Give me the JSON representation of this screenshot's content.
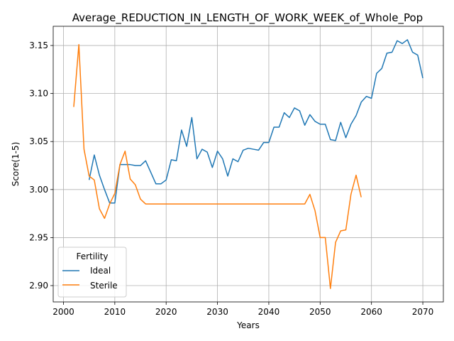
{
  "chart_data": {
    "type": "line",
    "title": "Average_REDUCTION_IN_LENGTH_OF_WORK_WEEK_of_Whole_Pop",
    "xlabel": "Years",
    "ylabel": "Score(1-5)",
    "xlim": [
      1998,
      2074
    ],
    "ylim": [
      2.883,
      3.17
    ],
    "xticks": [
      2000,
      2010,
      2020,
      2030,
      2040,
      2050,
      2060,
      2070
    ],
    "yticks": [
      2.9,
      2.95,
      3.0,
      3.05,
      3.1,
      3.15
    ],
    "xtick_labels": [
      "2000",
      "2010",
      "2020",
      "2030",
      "2040",
      "2050",
      "2060",
      "2070"
    ],
    "ytick_labels": [
      "2.90",
      "2.95",
      "3.00",
      "3.05",
      "3.10",
      "3.15"
    ],
    "grid": true,
    "legend": {
      "title": "Fertility",
      "position": "lower-left"
    },
    "series": [
      {
        "name": "Ideal",
        "color": "#1f77b4",
        "x": [
          2005,
          2006,
          2007,
          2008,
          2009,
          2010,
          2011,
          2012,
          2013,
          2014,
          2015,
          2016,
          2017,
          2018,
          2019,
          2020,
          2021,
          2022,
          2023,
          2024,
          2025,
          2026,
          2027,
          2028,
          2029,
          2030,
          2031,
          2032,
          2033,
          2034,
          2035,
          2036,
          2037,
          2038,
          2039,
          2040,
          2041,
          2042,
          2043,
          2044,
          2045,
          2046,
          2047,
          2048,
          2049,
          2050,
          2051,
          2052,
          2053,
          2054,
          2055,
          2056,
          2057,
          2058,
          2059,
          2060,
          2061,
          2062,
          2063,
          2064,
          2065,
          2066,
          2067,
          2068,
          2069,
          2070
        ],
        "y": [
          3.01,
          3.036,
          3.015,
          3.0,
          2.986,
          2.986,
          3.026,
          3.026,
          3.026,
          3.025,
          3.025,
          3.03,
          3.018,
          3.006,
          3.006,
          3.01,
          3.031,
          3.03,
          3.062,
          3.045,
          3.075,
          3.032,
          3.042,
          3.039,
          3.023,
          3.04,
          3.032,
          3.014,
          3.032,
          3.029,
          3.041,
          3.043,
          3.042,
          3.041,
          3.049,
          3.049,
          3.065,
          3.065,
          3.08,
          3.075,
          3.085,
          3.082,
          3.067,
          3.078,
          3.071,
          3.068,
          3.068,
          3.052,
          3.051,
          3.07,
          3.054,
          3.068,
          3.077,
          3.091,
          3.097,
          3.095,
          3.121,
          3.126,
          3.142,
          3.143,
          3.155,
          3.152,
          3.156,
          3.143,
          3.14,
          3.116
        ]
      },
      {
        "name": "Sterile",
        "color": "#ff7f0e",
        "x": [
          2002,
          2003,
          2004,
          2005,
          2006,
          2007,
          2008,
          2009,
          2010,
          2011,
          2012,
          2013,
          2014,
          2015,
          2016,
          2017,
          2018,
          2019,
          2020,
          2021,
          2022,
          2023,
          2024,
          2025,
          2026,
          2027,
          2028,
          2029,
          2030,
          2031,
          2032,
          2033,
          2034,
          2035,
          2036,
          2037,
          2038,
          2039,
          2040,
          2041,
          2042,
          2043,
          2044,
          2045,
          2046,
          2047,
          2048,
          2049,
          2050,
          2051,
          2052,
          2053,
          2054,
          2055,
          2056,
          2057,
          2058
        ],
        "y": [
          3.086,
          3.151,
          3.042,
          3.014,
          3.01,
          2.98,
          2.97,
          2.985,
          2.996,
          3.026,
          3.04,
          3.011,
          3.005,
          2.99,
          2.985,
          2.985,
          2.985,
          2.985,
          2.985,
          2.985,
          2.985,
          2.985,
          2.985,
          2.985,
          2.985,
          2.985,
          2.985,
          2.985,
          2.985,
          2.985,
          2.985,
          2.985,
          2.985,
          2.985,
          2.985,
          2.985,
          2.985,
          2.985,
          2.985,
          2.985,
          2.985,
          2.985,
          2.985,
          2.985,
          2.985,
          2.985,
          2.995,
          2.978,
          2.95,
          2.95,
          2.897,
          2.945,
          2.957,
          2.958,
          2.995,
          3.015,
          2.992
        ]
      }
    ]
  }
}
